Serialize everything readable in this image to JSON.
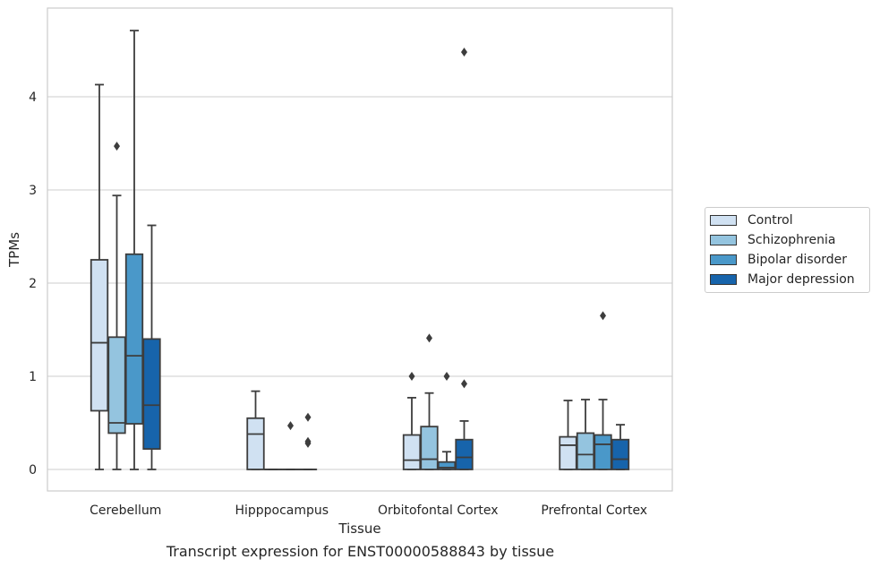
{
  "chart_data": {
    "type": "box",
    "title": "",
    "caption": "Transcript expression for ENST00000588843 by tissue",
    "xlabel": "Tissue",
    "ylabel": "TPMs",
    "ylim": [
      -0.23,
      4.95
    ],
    "yticks": [
      0,
      1,
      2,
      3,
      4
    ],
    "grid": "horizontal",
    "legend_position": "right",
    "categories": [
      "Cerebellum",
      "Hipppocampus",
      "Orbitofontal Cortex",
      "Prefrontal Cortex"
    ],
    "series": [
      {
        "name": "Control",
        "color": "#d0e1f2",
        "boxes": [
          {
            "min": 0,
            "q1": 0.63,
            "median": 1.36,
            "q3": 2.25,
            "max": 4.13,
            "outliers": []
          },
          {
            "min": 0,
            "q1": 0,
            "median": 0.38,
            "q3": 0.55,
            "max": 0.84,
            "outliers": []
          },
          {
            "min": 0,
            "q1": 0,
            "median": 0.1,
            "q3": 0.37,
            "max": 0.77,
            "outliers": [
              1.0
            ]
          },
          {
            "min": 0,
            "q1": 0,
            "median": 0.26,
            "q3": 0.35,
            "max": 0.74,
            "outliers": []
          }
        ]
      },
      {
        "name": "Schizophrenia",
        "color": "#94c4df",
        "boxes": [
          {
            "min": 0,
            "q1": 0.39,
            "median": 0.5,
            "q3": 1.42,
            "max": 2.94,
            "outliers": [
              3.47
            ]
          },
          {
            "min": 0,
            "q1": 0,
            "median": 0,
            "q3": 0,
            "max": 0,
            "outliers": []
          },
          {
            "min": 0,
            "q1": 0,
            "median": 0.11,
            "q3": 0.46,
            "max": 0.82,
            "outliers": [
              1.41
            ]
          },
          {
            "min": 0,
            "q1": 0,
            "median": 0.16,
            "q3": 0.39,
            "max": 0.75,
            "outliers": []
          }
        ]
      },
      {
        "name": "Bipolar disorder",
        "color": "#4a98c9",
        "boxes": [
          {
            "min": 0,
            "q1": 0.49,
            "median": 1.22,
            "q3": 2.31,
            "max": 4.71,
            "outliers": []
          },
          {
            "min": 0,
            "q1": 0,
            "median": 0,
            "q3": 0,
            "max": 0,
            "outliers": [
              0.47
            ]
          },
          {
            "min": 0,
            "q1": 0,
            "median": 0.02,
            "q3": 0.08,
            "max": 0.19,
            "outliers": [
              1.0
            ]
          },
          {
            "min": 0,
            "q1": 0,
            "median": 0.27,
            "q3": 0.37,
            "max": 0.75,
            "outliers": [
              1.65
            ]
          }
        ]
      },
      {
        "name": "Major depression",
        "color": "#1764ab",
        "boxes": [
          {
            "min": 0,
            "q1": 0.22,
            "median": 0.69,
            "q3": 1.4,
            "max": 2.62,
            "outliers": []
          },
          {
            "min": 0,
            "q1": 0,
            "median": 0,
            "q3": 0,
            "max": 0,
            "outliers": [
              0.56,
              0.3,
              0.28
            ]
          },
          {
            "min": 0,
            "q1": 0,
            "median": 0.13,
            "q3": 0.32,
            "max": 0.52,
            "outliers": [
              0.92,
              4.48
            ]
          },
          {
            "min": 0,
            "q1": 0,
            "median": 0.11,
            "q3": 0.32,
            "max": 0.48,
            "outliers": []
          }
        ]
      }
    ]
  }
}
